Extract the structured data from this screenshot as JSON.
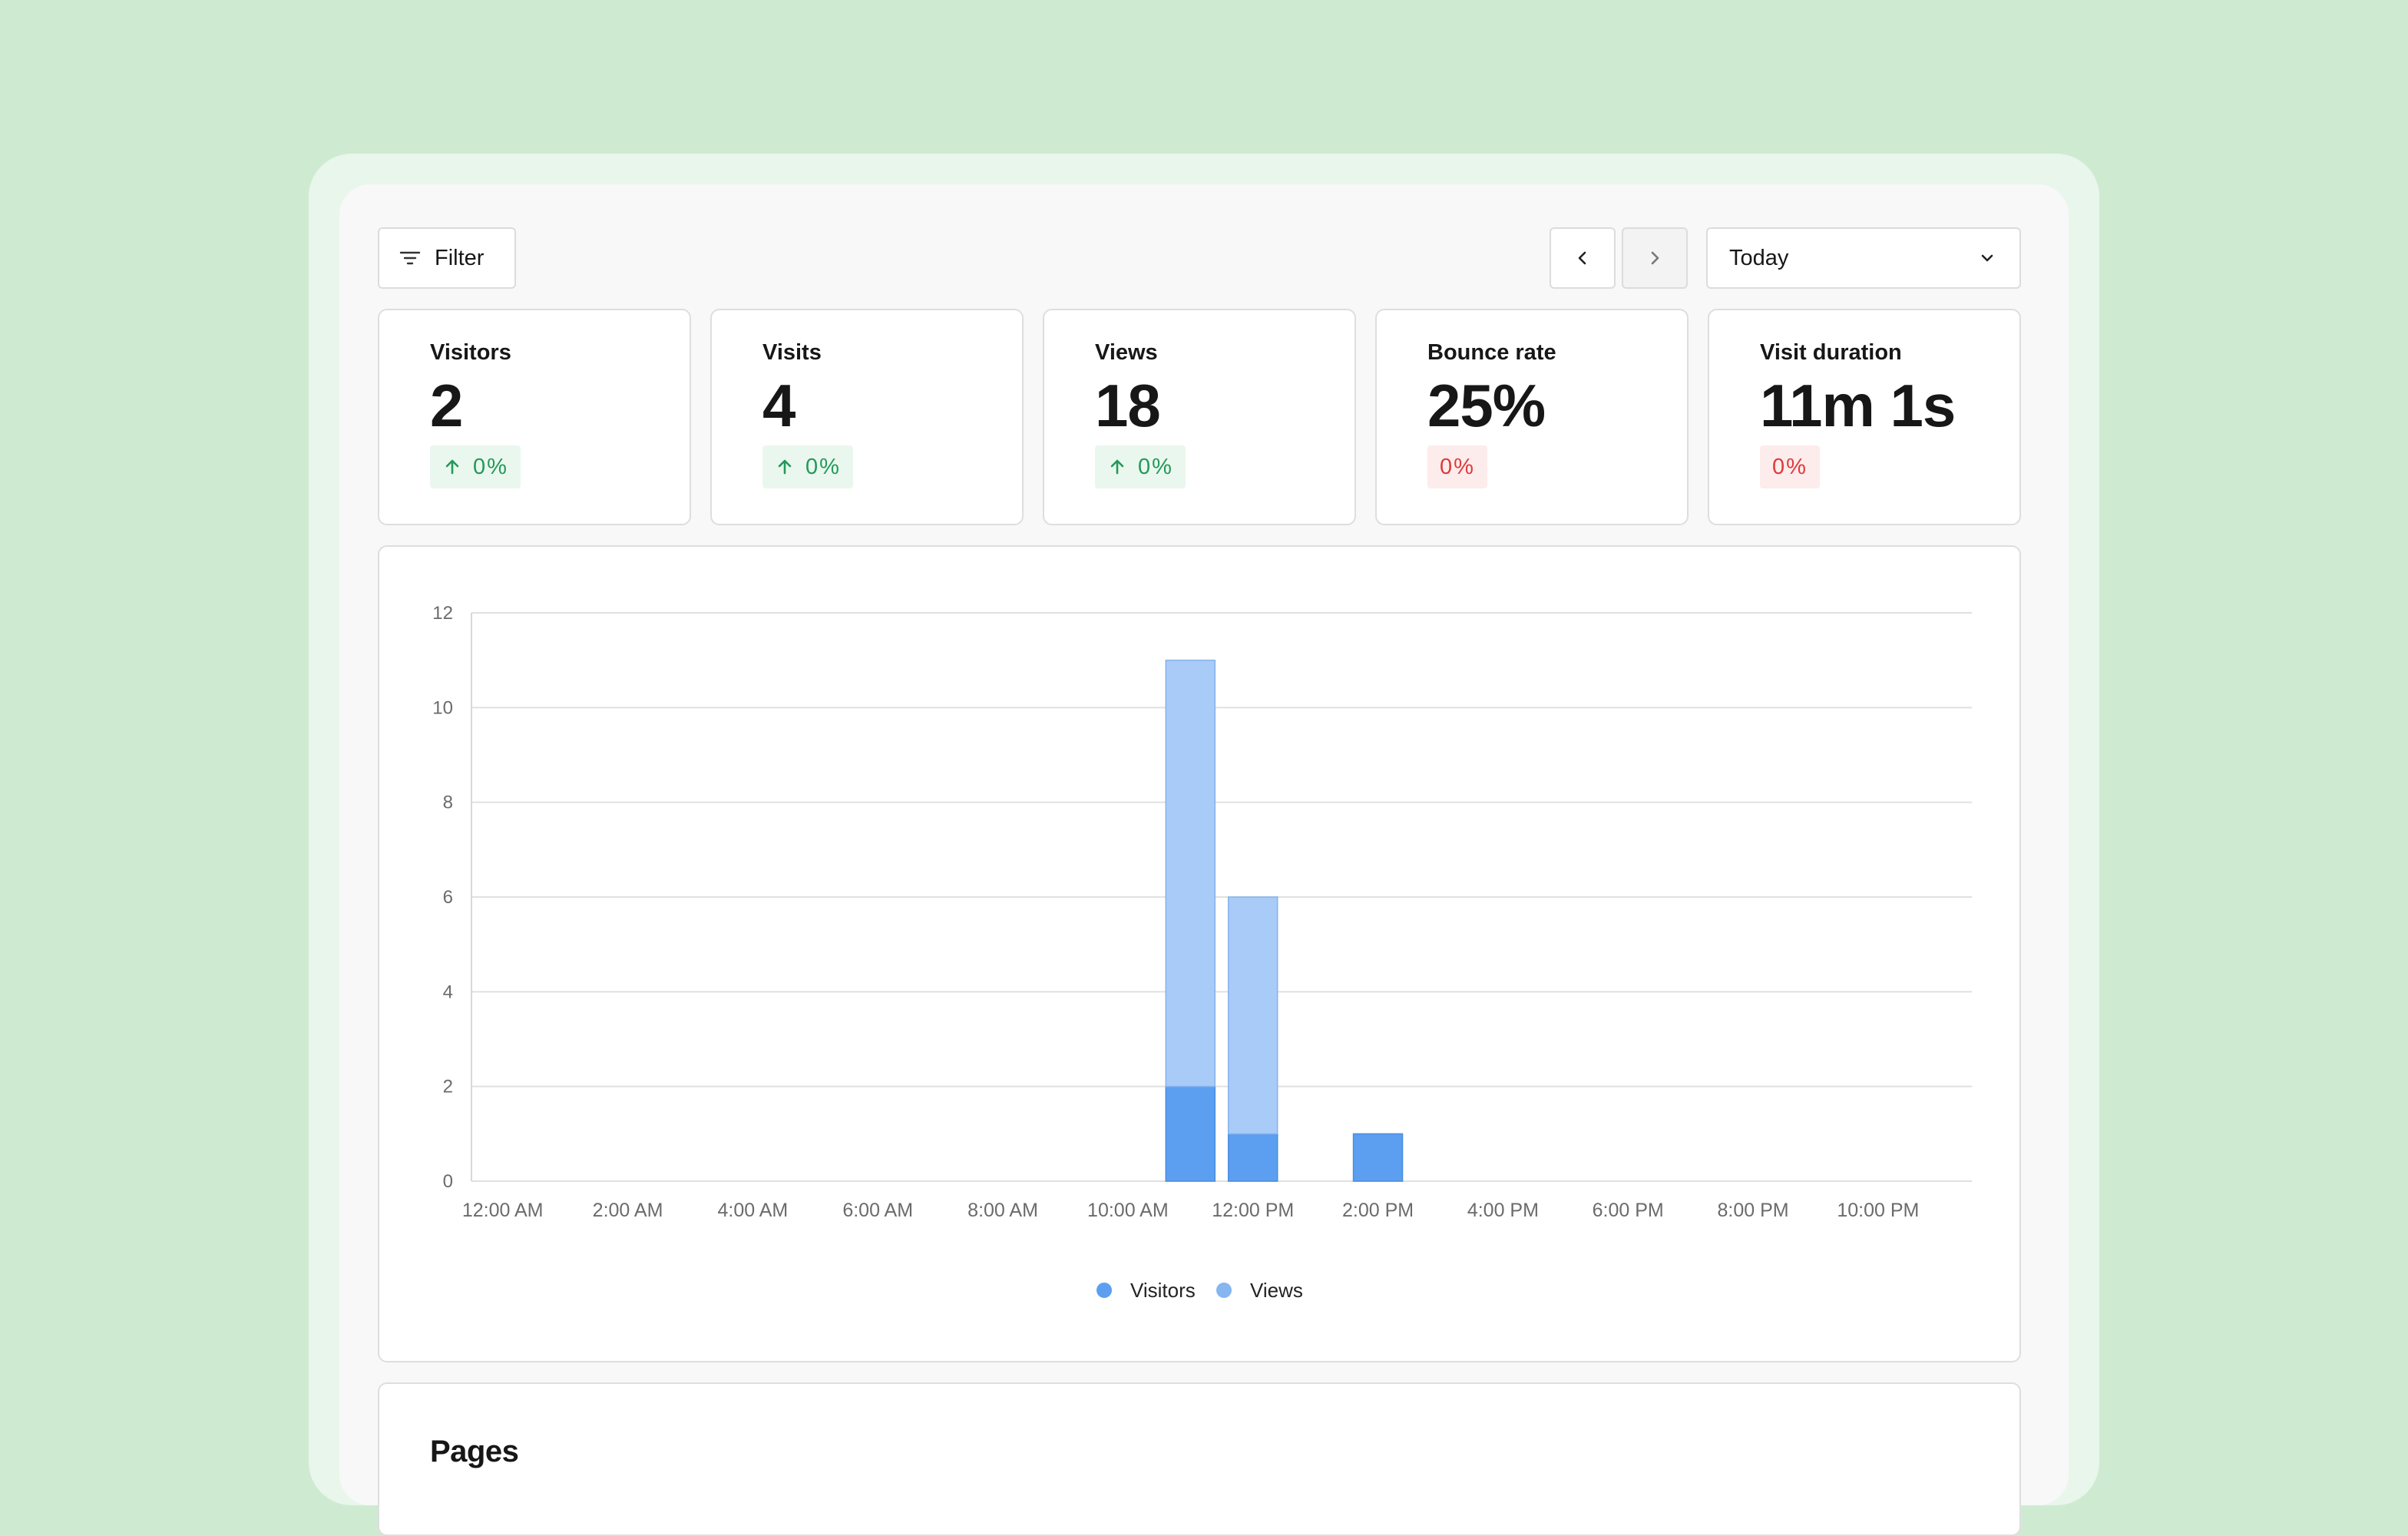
{
  "toolbar": {
    "filter_label": "Filter",
    "filter_icon": "filter-lines-icon",
    "prev_icon": "chevron-left-icon",
    "next_icon": "chevron-right-icon",
    "range_label": "Today",
    "range_icon": "chevron-down-icon"
  },
  "stats": [
    {
      "label": "Visitors",
      "value": "2",
      "change": "0%",
      "trend": "up"
    },
    {
      "label": "Visits",
      "value": "4",
      "change": "0%",
      "trend": "up"
    },
    {
      "label": "Views",
      "value": "18",
      "change": "0%",
      "trend": "up"
    },
    {
      "label": "Bounce rate",
      "value": "25%",
      "change": "0%",
      "trend": "neutral"
    },
    {
      "label": "Visit duration",
      "value": "11m 1s",
      "change": "0%",
      "trend": "neutral"
    }
  ],
  "colors": {
    "visitors": "#5c9ff0",
    "views": "#a9cbf7",
    "positive": "#23995a",
    "negative": "#de3b3b"
  },
  "chart_data": {
    "type": "bar",
    "stacked": true,
    "categories": [
      "12:00 AM",
      "1:00 AM",
      "2:00 AM",
      "3:00 AM",
      "4:00 AM",
      "5:00 AM",
      "6:00 AM",
      "7:00 AM",
      "8:00 AM",
      "9:00 AM",
      "10:00 AM",
      "11:00 AM",
      "12:00 PM",
      "1:00 PM",
      "2:00 PM",
      "3:00 PM",
      "4:00 PM",
      "5:00 PM",
      "6:00 PM",
      "7:00 PM",
      "8:00 PM",
      "9:00 PM",
      "10:00 PM",
      "11:00 PM"
    ],
    "x_tick_labels": [
      "12:00 AM",
      "2:00 AM",
      "4:00 AM",
      "6:00 AM",
      "8:00 AM",
      "10:00 AM",
      "12:00 PM",
      "2:00 PM",
      "4:00 PM",
      "6:00 PM",
      "8:00 PM",
      "10:00 PM"
    ],
    "series": [
      {
        "name": "Visitors",
        "values": [
          0,
          0,
          0,
          0,
          0,
          0,
          0,
          0,
          0,
          0,
          0,
          2,
          1,
          0,
          1,
          0,
          0,
          0,
          0,
          0,
          0,
          0,
          0,
          0
        ]
      },
      {
        "name": "Views",
        "values": [
          0,
          0,
          0,
          0,
          0,
          0,
          0,
          0,
          0,
          0,
          0,
          9,
          5,
          0,
          0,
          0,
          0,
          0,
          0,
          0,
          0,
          0,
          0,
          0
        ]
      }
    ],
    "y_ticks": [
      0,
      2,
      4,
      6,
      8,
      10,
      12
    ],
    "ylim": [
      0,
      12
    ],
    "grid": true,
    "legend_position": "bottom-center",
    "title": "",
    "xlabel": "",
    "ylabel": ""
  },
  "pages": {
    "title": "Pages"
  }
}
